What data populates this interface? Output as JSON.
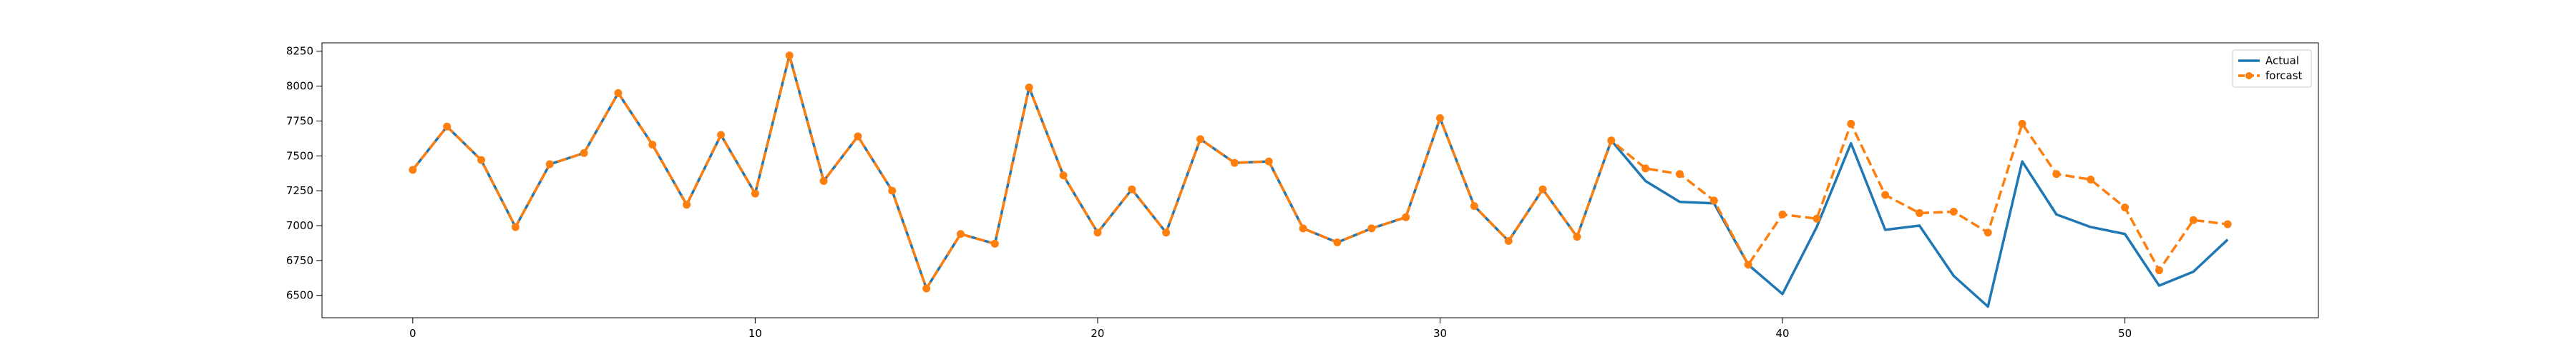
{
  "chart_data": {
    "type": "line",
    "title": "",
    "xlabel": "",
    "ylabel": "",
    "xlim": [
      -2.65,
      55.65
    ],
    "ylim": [
      6340,
      8310
    ],
    "xticks": [
      0,
      10,
      20,
      30,
      40,
      50
    ],
    "yticks": [
      6500,
      6750,
      7000,
      7250,
      7500,
      7750,
      8000,
      8250
    ],
    "grid": false,
    "legend_position": "top-right",
    "x": [
      0,
      1,
      2,
      3,
      4,
      5,
      6,
      7,
      8,
      9,
      10,
      11,
      12,
      13,
      14,
      15,
      16,
      17,
      18,
      19,
      20,
      21,
      22,
      23,
      24,
      25,
      26,
      27,
      28,
      29,
      30,
      31,
      32,
      33,
      34,
      35,
      36,
      37,
      38,
      39,
      40,
      41,
      42,
      43,
      44,
      45,
      46,
      47,
      48,
      49,
      50,
      51,
      52,
      53
    ],
    "series": [
      {
        "name": "Actual",
        "color": "#1f77b4",
        "style": "solid",
        "values": [
          7400,
          7710,
          7470,
          6990,
          7440,
          7520,
          7950,
          7580,
          7150,
          7650,
          7230,
          8220,
          7320,
          7640,
          7250,
          6550,
          6940,
          6870,
          7990,
          7360,
          6950,
          7260,
          6950,
          7620,
          7450,
          7460,
          6980,
          6880,
          6980,
          7060,
          7770,
          7140,
          6890,
          7260,
          6920,
          7610,
          7320,
          7170,
          7160,
          6720,
          6510,
          6990,
          7590,
          6970,
          7000,
          6640,
          6420,
          7460,
          7080,
          6990,
          6940,
          6570,
          6670,
          6900
        ]
      },
      {
        "name": "forcast",
        "color": "#ff7f0e",
        "style": "dashed",
        "marker": "circle",
        "values": [
          7400,
          7710,
          7470,
          6990,
          7440,
          7520,
          7950,
          7580,
          7150,
          7650,
          7230,
          8220,
          7320,
          7640,
          7250,
          6550,
          6940,
          6870,
          7990,
          7360,
          6950,
          7260,
          6950,
          7620,
          7450,
          7460,
          6980,
          6880,
          6980,
          7060,
          7770,
          7140,
          6890,
          7260,
          6920,
          7610,
          7410,
          7370,
          7180,
          6720,
          7080,
          7050,
          7730,
          7220,
          7090,
          7100,
          6950,
          7730,
          7370,
          7330,
          7130,
          6680,
          7040,
          7010
        ]
      }
    ]
  }
}
